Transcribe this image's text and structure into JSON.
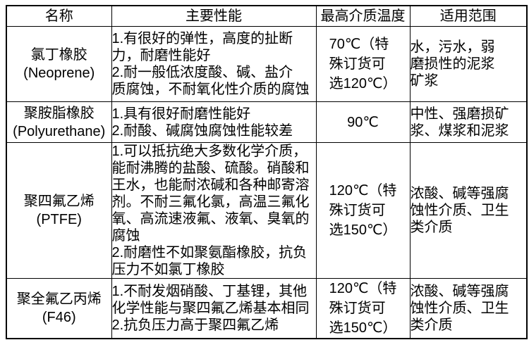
{
  "colors": {
    "background": "#ffffff",
    "border": "#000000",
    "text": "#000000"
  },
  "table": {
    "headers": {
      "name": "名称",
      "performance": "主要性能",
      "max_medium_temperature": "最高介质温度",
      "applicable_range": "适用范围"
    },
    "rows": [
      {
        "name_cn": "氯丁橡胶",
        "name_en": "(Neoprene)",
        "performance": "1.有很好的弹性，高度的扯断\n力，耐磨性能好\n2.耐一般低浓度酸、碱、盐介\n质腐蚀，不耐氧化性介质的腐蚀",
        "max_temp": "70℃（特\n殊订货可\n选120℃）",
        "range": "水，污水，弱\n磨损性的泥浆\n矿浆"
      },
      {
        "name_cn": "聚胺脂橡胶",
        "name_en": "(Polyurethane)",
        "performance": "1.具有很好耐磨性能好\n2.耐酸、碱腐蚀腐蚀性能较差",
        "max_temp": "90℃",
        "range": "中性、强磨损矿\n浆、煤浆和泥浆"
      },
      {
        "name_cn": "聚四氟乙烯",
        "name_en": "(PTFE)",
        "performance": "1.可以抵抗绝大多数化学介质，\n能耐沸腾的盐酸、硫酸。硝酸和\n王水，也能耐浓碱和各种邮寄溶\n剂。不耐三氟化氯，高温三氟化\n氧、高流速液氟、液氧、臭氧的\n腐蚀\n2.耐磨性不如聚氨酯橡胶，抗负\n压力不如氯丁橡胶",
        "max_temp": "120℃（特\n殊订货可\n选150℃）",
        "range": "浓酸、碱等强腐\n蚀性介质、卫生\n类介质"
      },
      {
        "name_cn": "聚全氟乙丙烯",
        "name_en": "(F46)",
        "performance": "1.不耐发烟硝酸、丁基锂，其他\n化学性能与聚四氟乙烯基本相同\n2.抗负压力高于聚四氟乙烯",
        "max_temp": "120℃（特\n殊订货可\n选150℃）",
        "range": "浓酸、碱等强腐\n蚀性介质、卫生\n类介质"
      }
    ]
  }
}
